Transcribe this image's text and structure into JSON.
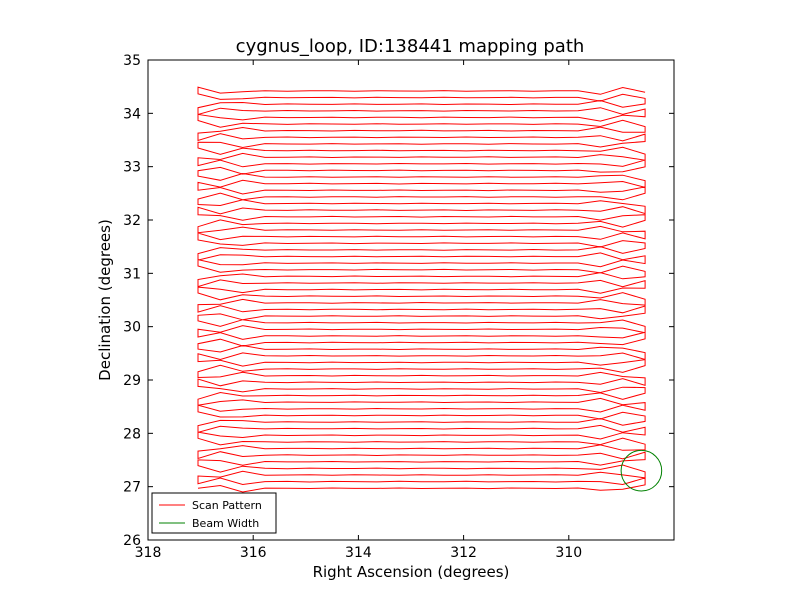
{
  "chart_data": {
    "type": "line",
    "title": "cygnus_loop, ID:138441 mapping path",
    "xlabel": "Right Ascension (degrees)",
    "ylabel": "Declination (degrees)",
    "xlim": [
      318,
      308
    ],
    "ylim": [
      26,
      35
    ],
    "x_inverted": true,
    "xticks": [
      "318",
      "316",
      "314",
      "312",
      "310"
    ],
    "yticks": [
      "26",
      "27",
      "28",
      "29",
      "30",
      "31",
      "32",
      "33",
      "34",
      "35"
    ],
    "grid": false,
    "legend_position": "lower-left",
    "scan": {
      "x_start": 317.05,
      "x_end": 308.55,
      "dec_first": 26.97,
      "dec_last": 34.42,
      "row_count": 61,
      "pattern": "boustrophedon"
    },
    "series": [
      {
        "name": "Scan Pattern",
        "color": "#ff0000",
        "kind": "line"
      },
      {
        "name": "Beam Width",
        "color": "#008000",
        "kind": "circle",
        "center": [
          308.62,
          27.3
        ],
        "radius_deg": 0.38
      }
    ]
  }
}
